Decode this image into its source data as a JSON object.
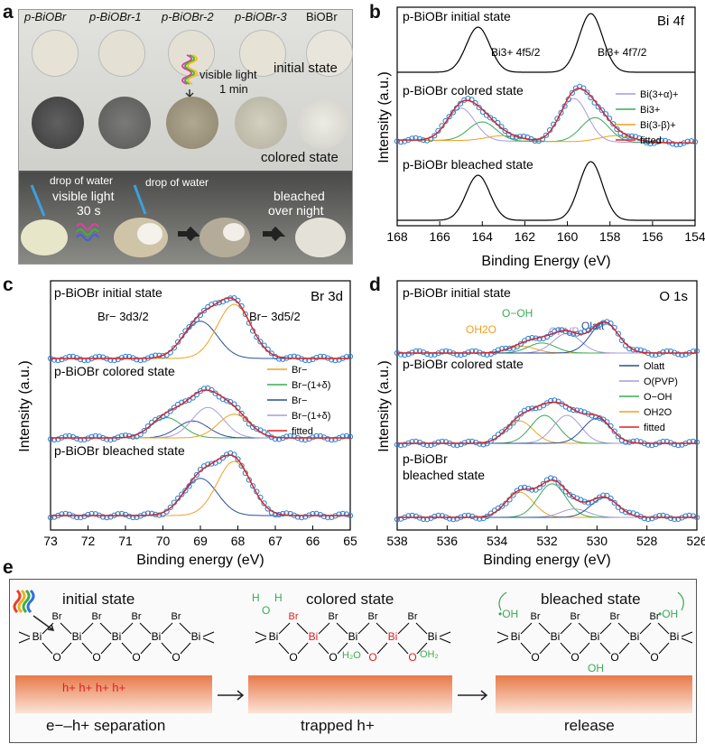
{
  "panels": {
    "a": "a",
    "b": "b",
    "c": "c",
    "d": "d",
    "e": "e"
  },
  "panel_a": {
    "samples": [
      "p-BiOBr",
      "p-BiOBr-1",
      "p-BiOBr-2",
      "p-BiOBr-3",
      "BiOBr"
    ],
    "initial_label": "initial state",
    "colored_label": "colored state",
    "light_label": "visible light",
    "light_time": "1 min",
    "water_1": "drop of water",
    "water_2": "drop of water",
    "light_label_2": "visible light",
    "light_time_2": "30 s",
    "bleached_1": "bleached",
    "bleached_2": "over night"
  },
  "panel_b": {
    "element": "Bi 4f",
    "state_initial": "p-BiOBr initial state",
    "state_colored": "p-BiOBr colored state",
    "state_bleached": "p-BiOBr bleached state",
    "peak_52": "Bi3+ 4f5/2",
    "peak_72": "Bi3+ 4f7/2",
    "legend": [
      "Bi(3+α)+",
      "Bi3+",
      "Bi(3-β)+",
      "fitted"
    ],
    "xlabel": "Binding Energy (eV)",
    "ylabel": "Intensity (a.u.)",
    "ticks": [
      "168",
      "166",
      "164",
      "162",
      "160",
      "158",
      "156",
      "154"
    ]
  },
  "panel_c": {
    "element": "Br 3d",
    "state_initial": "p-BiOBr initial state",
    "state_colored": "p-BiOBr colored state",
    "state_bleached": "p-BiOBr bleached state",
    "peak_32": "Br− 3d3/2",
    "peak_52": "Br− 3d5/2",
    "legend": [
      "Br−",
      "Br−(1+δ)",
      "Br−",
      "Br−(1+δ)",
      "fitted"
    ],
    "xlabel": "Binding energy (eV)",
    "ylabel": "Intensity (a.u.)",
    "ticks": [
      "73",
      "72",
      "71",
      "70",
      "69",
      "68",
      "67",
      "66",
      "65"
    ]
  },
  "panel_d": {
    "element": "O 1s",
    "state_initial": "p-BiOBr initial state",
    "state_colored": "p-BiOBr colored state",
    "state_bleached_1": "p-BiOBr",
    "state_bleached_2": "bleached state",
    "ann": [
      "OH2O",
      "O−OH",
      "OPVP",
      "Olatt"
    ],
    "legend": [
      "Olatt",
      "O(PVP)",
      "O−OH",
      "OH2O",
      "fitted"
    ],
    "xlabel": "Binding energy (eV)",
    "ylabel": "Intensity (a.u.)",
    "ticks": [
      "538",
      "536",
      "534",
      "532",
      "530",
      "528",
      "526"
    ]
  },
  "panel_e": {
    "initial": "initial state",
    "colored": "colored state",
    "bleached": "bleached state",
    "sep": "e−–h+ separation",
    "trapped": "trapped h+",
    "release": "release",
    "holes": "h+  h+  h+  h+",
    "br": "Br",
    "bi": "Bi",
    "o": "O",
    "oh": "•OH"
  },
  "chart_data": [
    {
      "type": "line",
      "title": "Bi 4f",
      "xlabel": "Binding Energy (eV)",
      "ylabel": "Intensity (a.u.)",
      "xlim": [
        168,
        154
      ],
      "series": [
        {
          "name": "initial state",
          "peaks": [
            {
              "center": 164.2,
              "height": 1.0
            },
            {
              "center": 158.9,
              "height": 1.3
            }
          ]
        },
        {
          "name": "Bi(3+α)+",
          "peaks": [
            {
              "center": 165.0,
              "height": 0.6
            },
            {
              "center": 159.7,
              "height": 0.8
            }
          ]
        },
        {
          "name": "Bi3+",
          "peaks": [
            {
              "center": 164.0,
              "height": 0.35
            },
            {
              "center": 158.7,
              "height": 0.45
            }
          ]
        },
        {
          "name": "Bi(3-β)+",
          "peaks": [
            {
              "center": 163.0,
              "height": 0.1
            },
            {
              "center": 157.7,
              "height": 0.12
            }
          ]
        },
        {
          "name": "bleached state",
          "peaks": [
            {
              "center": 164.2,
              "height": 1.0
            },
            {
              "center": 158.9,
              "height": 1.3
            }
          ]
        }
      ]
    },
    {
      "type": "line",
      "title": "Br 3d",
      "xlabel": "Binding energy (eV)",
      "ylabel": "Intensity (a.u.)",
      "xlim": [
        73,
        65
      ],
      "series": [
        {
          "name": "initial Br− 3d3/2",
          "center": 69.0,
          "height": 0.55
        },
        {
          "name": "initial Br− 3d5/2",
          "center": 68.1,
          "height": 0.8
        },
        {
          "name": "colored Br−(1+δ) 3d3/2",
          "center": 69.9,
          "height": 0.3
        },
        {
          "name": "colored Br− 3d3/2",
          "center": 69.2,
          "height": 0.25
        },
        {
          "name": "colored Br−(1+δ) 3d5/2",
          "center": 68.8,
          "height": 0.45
        },
        {
          "name": "colored Br− 3d5/2",
          "center": 68.1,
          "height": 0.35
        },
        {
          "name": "bleached Br− 3d3/2",
          "center": 69.0,
          "height": 0.55
        },
        {
          "name": "bleached Br− 3d5/2",
          "center": 68.1,
          "height": 0.8
        }
      ]
    },
    {
      "type": "line",
      "title": "O 1s",
      "xlabel": "Binding energy (eV)",
      "ylabel": "Intensity (a.u.)",
      "xlim": [
        538,
        526
      ],
      "series": [
        {
          "name": "initial OH2O",
          "center": 533.0,
          "height": 0.12
        },
        {
          "name": "initial O−OH",
          "center": 532.2,
          "height": 0.18
        },
        {
          "name": "initial OPVP",
          "center": 531.2,
          "height": 0.35
        },
        {
          "name": "initial Olatt",
          "center": 529.7,
          "height": 0.55
        },
        {
          "name": "colored OH2O",
          "center": 533.1,
          "height": 0.4
        },
        {
          "name": "colored O−OH",
          "center": 532.1,
          "height": 0.5
        },
        {
          "name": "colored OPVP",
          "center": 531.2,
          "height": 0.5
        },
        {
          "name": "colored Olatt",
          "center": 530.0,
          "height": 0.45
        },
        {
          "name": "bleached OH2O",
          "center": 533.1,
          "height": 0.45
        },
        {
          "name": "bleached O−OH",
          "center": 531.8,
          "height": 0.6
        },
        {
          "name": "bleached OPVP",
          "center": 530.9,
          "height": 0.15
        },
        {
          "name": "bleached Olatt",
          "center": 529.7,
          "height": 0.35
        }
      ]
    }
  ],
  "colors": {
    "orange": "#f0a020",
    "green": "#3aaa55",
    "blue": "#2a4f9a",
    "purple": "#9a8ad0",
    "red": "#e02020",
    "dots": "#2a7fd0",
    "lightpurple": "#a89ad8"
  }
}
